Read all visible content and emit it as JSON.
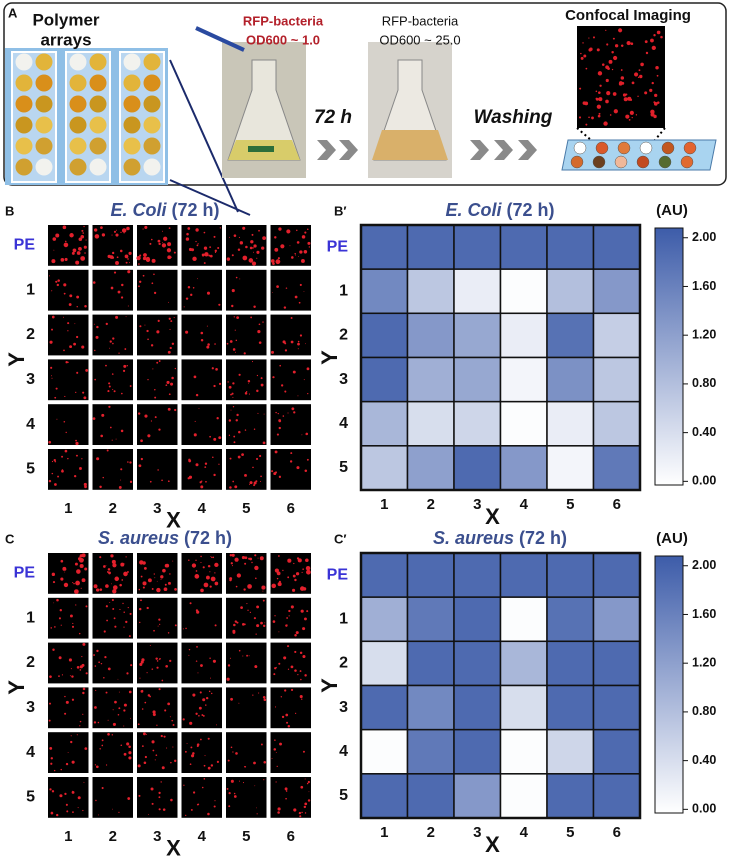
{
  "panel_a": {
    "label": "A",
    "arrays_title": [
      "Polymer",
      "arrays"
    ],
    "start_title": [
      "RFP-bacteria",
      "OD600 ~ 1.0"
    ],
    "time": "72 h",
    "end_title": [
      "RFP-bacteria",
      "OD600 ~ 25.0"
    ],
    "wash": "Washing",
    "imaging": "Confocal Imaging"
  },
  "micro_panels": [
    {
      "label": "B",
      "title": {
        "organism": "E. Coli",
        "time": "(72 h)"
      },
      "rows": [
        "PE",
        "1",
        "2",
        "3",
        "4",
        "5"
      ],
      "cols": [
        "1",
        "2",
        "3",
        "4",
        "5",
        "6"
      ],
      "xlabel": "X",
      "ylabel": "Y"
    },
    {
      "label": "C",
      "title": {
        "organism": "S. aureus",
        "time": "(72 h)"
      },
      "rows": [
        "PE",
        "1",
        "2",
        "3",
        "4",
        "5"
      ],
      "cols": [
        "1",
        "2",
        "3",
        "4",
        "5",
        "6"
      ],
      "xlabel": "X",
      "ylabel": "Y"
    }
  ],
  "chart_data": [
    {
      "type": "heatmap",
      "label": "B′",
      "title": {
        "organism": "E. Coli",
        "time": "(72 h)"
      },
      "rows": [
        "PE",
        "1",
        "2",
        "3",
        "4",
        "5"
      ],
      "cols": [
        "1",
        "2",
        "3",
        "4",
        "5",
        "6"
      ],
      "xlabel": "X",
      "ylabel": "Y",
      "z": [
        [
          1.9,
          1.9,
          1.9,
          1.9,
          1.9,
          1.9
        ],
        [
          1.5,
          0.7,
          0.2,
          0.0,
          0.8,
          1.3
        ],
        [
          1.9,
          1.3,
          1.1,
          0.2,
          1.8,
          0.6
        ],
        [
          1.9,
          1.0,
          1.1,
          0.1,
          1.4,
          0.7
        ],
        [
          0.9,
          0.4,
          0.5,
          0.0,
          0.2,
          0.7
        ],
        [
          0.7,
          1.2,
          1.9,
          1.3,
          0.1,
          1.7
        ]
      ],
      "color_scale": [
        "#ffffff",
        "#3d5ca9"
      ],
      "zlim": [
        -0.03,
        2.08
      ],
      "colorbar_title": "(AU)",
      "zticks": [
        {
          "value": 0,
          "label": "0.00"
        },
        {
          "value": 0.4,
          "label": "0.40"
        },
        {
          "value": 0.8,
          "label": "0.80"
        },
        {
          "value": 1.2,
          "label": "1.20"
        },
        {
          "value": 1.6,
          "label": "1.60"
        },
        {
          "value": 2,
          "label": "2.00"
        }
      ]
    },
    {
      "type": "heatmap",
      "label": "C′",
      "title": {
        "organism": "S. aureus",
        "time": "(72 h)"
      },
      "rows": [
        "PE",
        "1",
        "2",
        "3",
        "4",
        "5"
      ],
      "cols": [
        "1",
        "2",
        "3",
        "4",
        "5",
        "6"
      ],
      "xlabel": "X",
      "ylabel": "Y",
      "z": [
        [
          1.9,
          1.9,
          1.9,
          1.9,
          1.9,
          1.9
        ],
        [
          1.0,
          1.7,
          1.9,
          0.0,
          1.8,
          1.3
        ],
        [
          0.4,
          1.9,
          1.9,
          0.9,
          1.9,
          1.9
        ],
        [
          1.9,
          1.5,
          1.9,
          0.4,
          1.9,
          1.9
        ],
        [
          0.0,
          1.7,
          1.9,
          0.0,
          0.5,
          1.9
        ],
        [
          1.9,
          1.9,
          1.3,
          0.0,
          1.9,
          1.9
        ]
      ],
      "color_scale": [
        "#ffffff",
        "#3d5ca9"
      ],
      "zlim": [
        -0.03,
        2.08
      ],
      "colorbar_title": "(AU)",
      "zticks": [
        {
          "value": 0,
          "label": "0.00"
        },
        {
          "value": 0.4,
          "label": "0.40"
        },
        {
          "value": 0.8,
          "label": "0.80"
        },
        {
          "value": 1.2,
          "label": "1.20"
        },
        {
          "value": 1.6,
          "label": "1.60"
        },
        {
          "value": 2,
          "label": "2.00"
        }
      ]
    }
  ]
}
